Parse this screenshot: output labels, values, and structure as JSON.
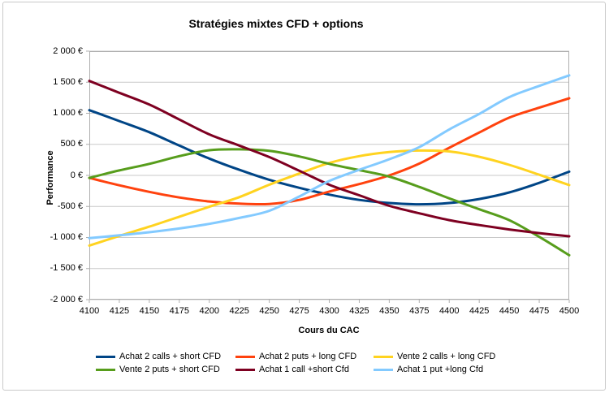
{
  "chart": {
    "title": "Stratégies mixtes CFD + options",
    "xlabel": "Cours du CAC",
    "ylabel": "Performance"
  },
  "colors": {
    "grid": "#C9C9C9",
    "axis": "#AFAFAF",
    "frame_border": "#C9C9C9",
    "text": "#000000"
  },
  "chart_data": {
    "type": "line",
    "title": "Stratégies mixtes CFD + options",
    "xlabel": "Cours du CAC",
    "ylabel": "Performance",
    "xlim": [
      4100,
      4500
    ],
    "ylim": [
      -2000,
      2000
    ],
    "grid": "horizontal",
    "legend_position": "bottom",
    "line_width": 3,
    "x": [
      4100,
      4125,
      4150,
      4175,
      4200,
      4225,
      4250,
      4275,
      4300,
      4325,
      4350,
      4375,
      4400,
      4425,
      4450,
      4475,
      4500
    ],
    "x_tick_labels": [
      "4100",
      "4125",
      "4150",
      "4175",
      "4200",
      "4225",
      "4250",
      "4275",
      "4300",
      "4325",
      "4350",
      "4375",
      "4400",
      "4425",
      "4450",
      "4475",
      "4500"
    ],
    "y_ticks": [
      2000,
      1500,
      1000,
      500,
      0,
      -500,
      -1000,
      -1500,
      -2000
    ],
    "y_tick_labels": [
      "2 000 €",
      "1 500 €",
      "1 000 €",
      "500 €",
      "0 €",
      "-500 €",
      "-1 000 €",
      "-1 500 €",
      "-2 000 €"
    ],
    "series": [
      {
        "name": "Achat 2 calls + short CFD",
        "color": "#004586",
        "values": [
          1050,
          875,
          695,
          480,
          270,
          90,
          -70,
          -200,
          -310,
          -395,
          -445,
          -465,
          -445,
          -380,
          -275,
          -120,
          60
        ]
      },
      {
        "name": "Achat 2 puts + long CFD",
        "color": "#FF420E",
        "values": [
          -40,
          -160,
          -265,
          -355,
          -420,
          -455,
          -460,
          -395,
          -260,
          -140,
          0,
          190,
          445,
          690,
          930,
          1090,
          1240
        ]
      },
      {
        "name": "Vente 2 calls + long CFD",
        "color": "#FFD320",
        "values": [
          -1130,
          -975,
          -825,
          -665,
          -505,
          -350,
          -150,
          30,
          200,
          310,
          375,
          400,
          385,
          300,
          170,
          10,
          -155
        ]
      },
      {
        "name": "Vente 2 puts + short CFD",
        "color": "#579D1C",
        "values": [
          -40,
          80,
          185,
          310,
          405,
          420,
          395,
          305,
          185,
          85,
          -20,
          -185,
          -370,
          -545,
          -720,
          -990,
          -1285
        ]
      },
      {
        "name": "Achat 1 call +short Cfd",
        "color": "#7E0021",
        "values": [
          1520,
          1330,
          1140,
          900,
          660,
          480,
          295,
          75,
          -150,
          -320,
          -490,
          -610,
          -720,
          -800,
          -870,
          -930,
          -980
        ]
      },
      {
        "name": "Achat 1 put +long Cfd",
        "color": "#83CAFF",
        "values": [
          -1010,
          -965,
          -915,
          -855,
          -780,
          -685,
          -570,
          -340,
          -90,
          90,
          260,
          455,
          740,
          990,
          1260,
          1440,
          1610
        ]
      }
    ]
  }
}
